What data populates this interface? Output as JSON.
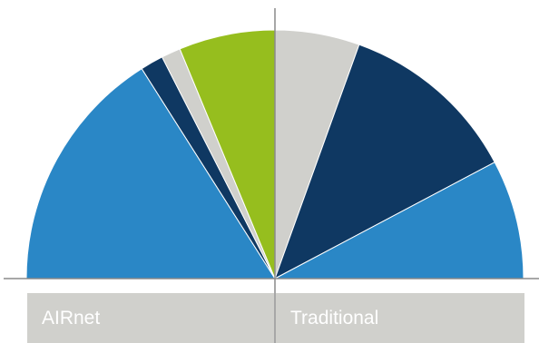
{
  "chart_data": {
    "type": "pie",
    "subtype": "semicircle",
    "title": "",
    "colors": {
      "light_blue": "#2a87c6",
      "dark_navy": "#0f3862",
      "light_gray": "#d0d0cc",
      "lime_green": "#96be1e"
    },
    "groups": [
      {
        "label": "AIRnet",
        "slices": [
          {
            "color": "#2a87c6",
            "value": 64
          },
          {
            "color": "#0f3862",
            "value": 6
          },
          {
            "color": "#d0d0cc",
            "value": 5
          },
          {
            "color": "#96be1e",
            "value": 25
          }
        ]
      },
      {
        "label": "Traditional",
        "slices": [
          {
            "color": "#d0d0cc",
            "value": 22
          },
          {
            "color": "#0f3862",
            "value": 47
          },
          {
            "color": "#2a87c6",
            "value": 31
          }
        ]
      }
    ]
  }
}
